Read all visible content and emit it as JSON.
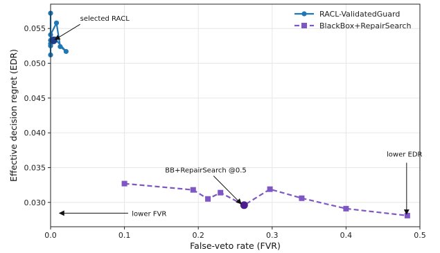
{
  "chart_data": {
    "type": "line",
    "xlabel": "False-veto rate (FVR)",
    "ylabel": "Effective decision regret (EDR)",
    "xlim": [
      0.0,
      0.5
    ],
    "ylim": [
      0.0265,
      0.0585
    ],
    "xticks": [
      0.0,
      0.1,
      0.2,
      0.3,
      0.4,
      0.5
    ],
    "xtick_labels": [
      "0.0",
      "0.1",
      "0.2",
      "0.3",
      "0.4",
      "0.5"
    ],
    "yticks": [
      0.03,
      0.035,
      0.04,
      0.045,
      0.05,
      0.055
    ],
    "ytick_labels": [
      "0.030",
      "0.035",
      "0.040",
      "0.045",
      "0.050",
      "0.055"
    ],
    "grid": true,
    "legend_position": "top-right",
    "series": [
      {
        "name": "RACL-ValidatedGuard",
        "color": "#1f77b4",
        "marker": "circle",
        "linestyle": "solid",
        "x": [
          0.0,
          0.0,
          0.0,
          0.0,
          0.0,
          0.008,
          0.013,
          0.021,
          0.006,
          0.0
        ],
        "y": [
          0.0512,
          0.0533,
          0.0572,
          0.0525,
          0.0541,
          0.0558,
          0.0524,
          0.0517,
          0.0535,
          0.0528
        ]
      },
      {
        "name": "BlackBox+RepairSearch",
        "color": "#7e57c2",
        "marker": "square",
        "linestyle": "dashed",
        "x": [
          0.1,
          0.193,
          0.213,
          0.23,
          0.262,
          0.297,
          0.34,
          0.4,
          0.483
        ],
        "y": [
          0.0327,
          0.0318,
          0.0305,
          0.0314,
          0.0296,
          0.0319,
          0.0306,
          0.0291,
          0.0281
        ]
      }
    ],
    "highlights": [
      {
        "label": "selected RACL",
        "x": 0.004,
        "y": 0.0533,
        "color": "#1f3c88"
      },
      {
        "label": "BB+RepairSearch @0.5",
        "x": 0.262,
        "y": 0.0296,
        "color": "#4b1d8f"
      }
    ],
    "annotations": [
      {
        "text": "selected RACL",
        "text_x": 0.04,
        "text_y": 0.0561,
        "arrow_to_x": 0.006,
        "arrow_to_y": 0.0534
      },
      {
        "text": "BB+RepairSearch @0.5",
        "text_x": 0.155,
        "text_y": 0.0343,
        "arrow_to_x": 0.258,
        "arrow_to_y": 0.0298
      },
      {
        "text": "lower FVR",
        "text_x": 0.11,
        "text_y": 0.02845,
        "arrow_from_x": 0.105,
        "arrow_from_y": 0.02845,
        "arrow_to_x": 0.012,
        "arrow_to_y": 0.02845
      },
      {
        "text": "lower EDR",
        "text_x": 0.455,
        "text_y": 0.0366,
        "arrow_from_x": 0.482,
        "arrow_from_y": 0.0357,
        "arrow_to_x": 0.482,
        "arrow_to_y": 0.0283
      }
    ]
  }
}
